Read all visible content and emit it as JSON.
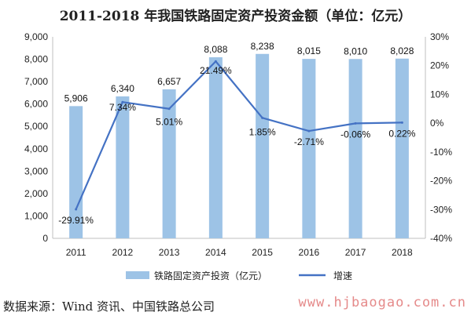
{
  "title": "2011-2018 年我国铁路固定资产投资金额（单位：亿元）",
  "source": "数据来源：Wind 资讯、中国铁路总公司",
  "watermark": "www.hjbaogao.com.cn",
  "chart_data": {
    "type": "bar",
    "categories": [
      "2011",
      "2012",
      "2013",
      "2014",
      "2015",
      "2016",
      "2017",
      "2018"
    ],
    "series": [
      {
        "name": "铁路固定资产投资（亿元）",
        "type": "bar",
        "axis": "left",
        "values": [
          5906,
          6340,
          6657,
          8088,
          8238,
          8015,
          8010,
          8028
        ],
        "labels": [
          "5,906",
          "6,340",
          "6,657",
          "8,088",
          "8,238",
          "8,015",
          "8,010",
          "8,028"
        ],
        "color": "#9dc3e6"
      },
      {
        "name": "增速",
        "type": "line",
        "axis": "right",
        "values": [
          -29.91,
          7.34,
          5.01,
          21.49,
          1.85,
          -2.71,
          -0.06,
          0.22
        ],
        "labels": [
          "-29.91%",
          "7.34%",
          "5.01%",
          "21.49%",
          "1.85%",
          "-2.71%",
          "-0.06%",
          "0.22%"
        ],
        "color": "#4472c4"
      }
    ],
    "y_left": {
      "ylim": [
        0,
        9000
      ],
      "ticks": [
        0,
        1000,
        2000,
        3000,
        4000,
        5000,
        6000,
        7000,
        8000,
        9000
      ],
      "tick_labels": [
        "0",
        "1,000",
        "2,000",
        "3,000",
        "4,000",
        "5,000",
        "6,000",
        "7,000",
        "8,000",
        "9,000"
      ]
    },
    "y_right": {
      "ylim": [
        -40,
        30
      ],
      "ticks": [
        -40,
        -30,
        -20,
        -10,
        0,
        10,
        20,
        30
      ],
      "tick_labels": [
        "-40%",
        "-30%",
        "-20%",
        "-10%",
        "0%",
        "10%",
        "20%",
        "30%"
      ]
    },
    "grid": false,
    "legend_position": "bottom"
  }
}
